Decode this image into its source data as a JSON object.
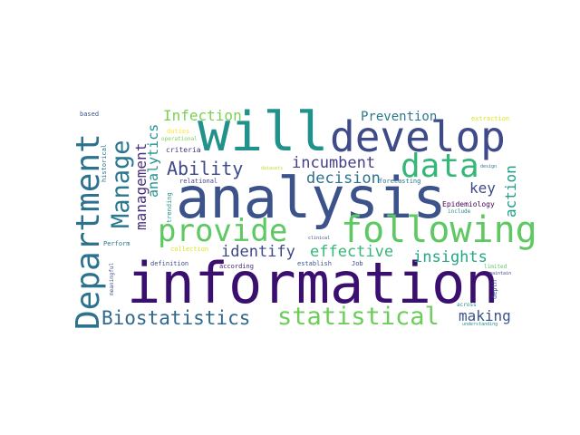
{
  "words": [
    {
      "text": "information",
      "color": "#3b0f6f"
    },
    {
      "text": "analysis",
      "color": "#3b528b"
    },
    {
      "text": "will",
      "color": "#21918c"
    },
    {
      "text": "develop",
      "color": "#3e4a89"
    },
    {
      "text": "Department",
      "color": "#2c728e"
    },
    {
      "text": "following",
      "color": "#5ec962"
    },
    {
      "text": "provide",
      "color": "#5ec962"
    },
    {
      "text": "data",
      "color": "#35b779"
    },
    {
      "text": "statistical",
      "color": "#6ccd5a"
    },
    {
      "text": "Manage",
      "color": "#2a788e"
    },
    {
      "text": "Biostatistics",
      "color": "#31688e"
    },
    {
      "text": "Ability",
      "color": "#3e4a89"
    },
    {
      "text": "incumbent",
      "color": "#433e85"
    },
    {
      "text": "decision",
      "color": "#2c728e"
    },
    {
      "text": "identify",
      "color": "#3e4989"
    },
    {
      "text": "effective",
      "color": "#35b779"
    },
    {
      "text": "insights",
      "color": "#22a884"
    },
    {
      "text": "Infection",
      "color": "#7ad151"
    },
    {
      "text": "Prevention",
      "color": "#2a788e"
    },
    {
      "text": "key",
      "color": "#3e4989"
    },
    {
      "text": "management",
      "color": "#472d7b"
    },
    {
      "text": "analytics",
      "color": "#21918c"
    },
    {
      "text": "action",
      "color": "#1f9e89"
    },
    {
      "text": "making",
      "color": "#3b528b"
    },
    {
      "text": "Epidemiology",
      "color": "#440154"
    },
    {
      "text": "relational",
      "color": "#414487"
    },
    {
      "text": "forecasting",
      "color": "#2c728e"
    },
    {
      "text": "criteria",
      "color": "#46337e"
    },
    {
      "text": "duties",
      "color": "#fde725"
    },
    {
      "text": "operational",
      "color": "#7ad151"
    },
    {
      "text": "historical",
      "color": "#2c728e"
    },
    {
      "text": "trending",
      "color": "#21918c"
    },
    {
      "text": "based",
      "color": "#3b528b"
    },
    {
      "text": "Perform",
      "color": "#2a788e"
    },
    {
      "text": "collection",
      "color": "#dde318"
    },
    {
      "text": "definition",
      "color": "#3e4989"
    },
    {
      "text": "according",
      "color": "#482475"
    },
    {
      "text": "establish",
      "color": "#3b528b"
    },
    {
      "text": "Job",
      "color": "#3e4989"
    },
    {
      "text": "include",
      "color": "#21918c"
    },
    {
      "text": "limited",
      "color": "#5ec962"
    },
    {
      "text": "depth",
      "color": "#3b528b"
    },
    {
      "text": "across",
      "color": "#21918c"
    },
    {
      "text": "understanding",
      "color": "#21918c"
    },
    {
      "text": "meaningful",
      "color": "#3b528b"
    },
    {
      "text": "datasets",
      "color": "#b5de2b"
    },
    {
      "text": "clinical",
      "color": "#3b528b"
    },
    {
      "text": "extraction",
      "color": "#dde318"
    },
    {
      "text": "design",
      "color": "#2c728e"
    },
    {
      "text": "maintain",
      "color": "#3e4989"
    }
  ]
}
